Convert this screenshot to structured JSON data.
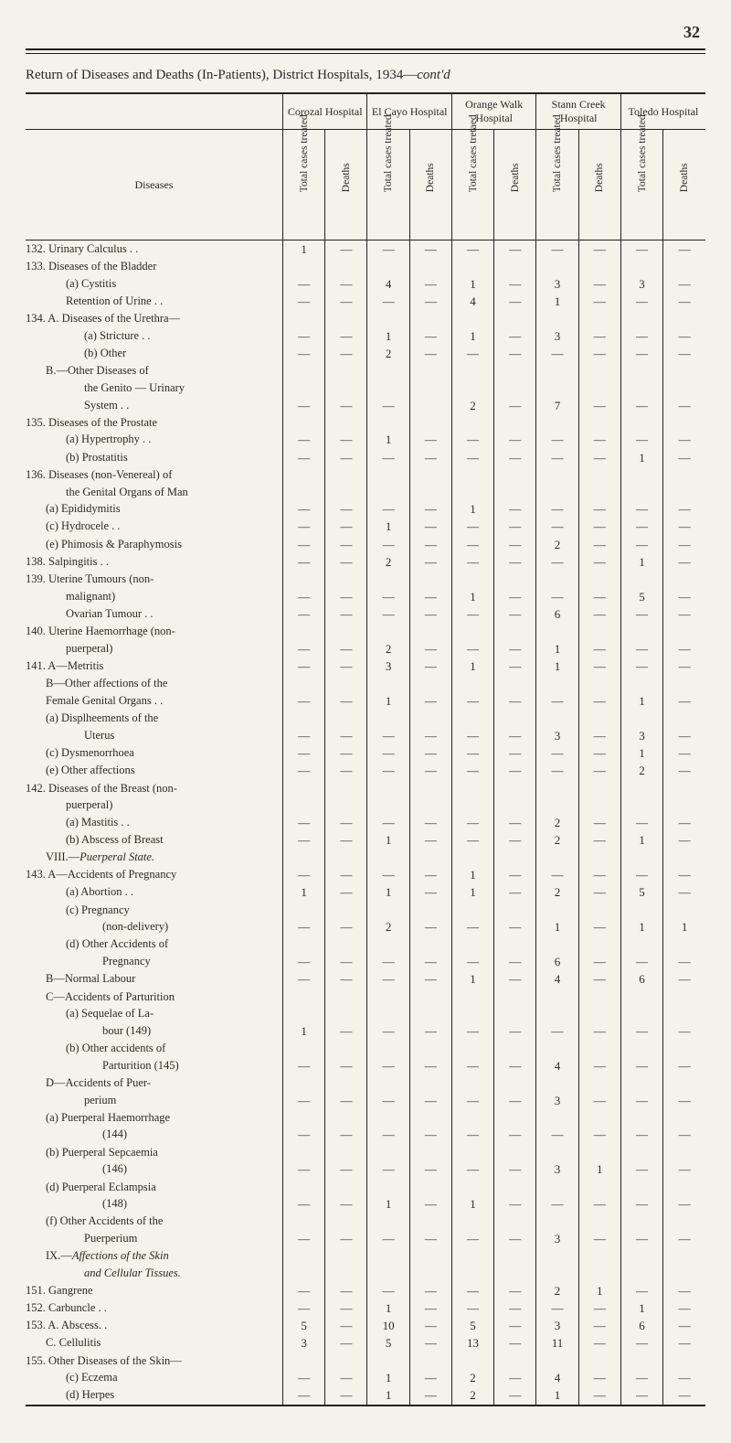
{
  "page_number": "32",
  "title": "Return of Diseases and Deaths (In-Patients), District Hospitals, 1934—",
  "title_tail_italic": "cont'd",
  "diseases_header": "Diseases",
  "hospitals": [
    "Corozal Hospital",
    "El Cayo Hospital",
    "Orange Walk Hospital",
    "Stann Creek Hospital",
    "Toledo Hospital"
  ],
  "subcols": [
    "Total cases treated",
    "Deaths",
    "Total cases treated",
    "Deaths",
    "Total cases tretaed",
    "Deaths",
    "Total cases treated",
    "Deaths",
    "Total cases treated",
    "Deaths"
  ],
  "dash": "—",
  "rows": [
    {
      "indent": 0,
      "label": "132. Urinary Calculus  . .",
      "v": [
        "1",
        "—",
        "—",
        "—",
        "—",
        "—",
        "—",
        "—",
        "—",
        "—"
      ]
    },
    {
      "indent": 0,
      "label": "133. Diseases of the Bladder",
      "v": [
        "",
        "",
        "",
        "",
        "",
        "",
        "",
        "",
        "",
        ""
      ]
    },
    {
      "indent": 2,
      "label": "(a)  Cystitis",
      "v": [
        "—",
        "—",
        "4",
        "—",
        "1",
        "—",
        "3",
        "—",
        "3",
        "—"
      ]
    },
    {
      "indent": 2,
      "label": "Retention of Urine  . .",
      "v": [
        "—",
        "—",
        "—",
        "—",
        "4",
        "—",
        "1",
        "—",
        "—",
        "—"
      ]
    },
    {
      "indent": 0,
      "label": "134. A.  Diseases of the Urethra—",
      "v": [
        "",
        "",
        "",
        "",
        "",
        "",
        "",
        "",
        "",
        ""
      ]
    },
    {
      "indent": 3,
      "label": "(a)  Stricture  . .",
      "v": [
        "—",
        "—",
        "1",
        "—",
        "1",
        "—",
        "3",
        "—",
        "—",
        "—"
      ]
    },
    {
      "indent": 3,
      "label": "(b)  Other",
      "v": [
        "—",
        "—",
        "2",
        "—",
        "—",
        "—",
        "—",
        "—",
        "—",
        "—"
      ]
    },
    {
      "indent": 1,
      "label": "B.—Other Diseases of",
      "v": [
        "",
        "",
        "",
        "",
        "",
        "",
        "",
        "",
        "",
        ""
      ]
    },
    {
      "indent": 3,
      "label": "the Genito — Urinary",
      "v": [
        "",
        "",
        "",
        "",
        "",
        "",
        "",
        "",
        "",
        ""
      ]
    },
    {
      "indent": 3,
      "label": "System  . .",
      "v": [
        "—",
        "—",
        "—",
        "",
        "2",
        "—",
        "7",
        "—",
        "—",
        "—"
      ]
    },
    {
      "indent": 0,
      "label": "135. Diseases of the Prostate",
      "v": [
        "",
        "",
        "",
        "",
        "",
        "",
        "",
        "",
        "",
        ""
      ]
    },
    {
      "indent": 2,
      "label": "(a)  Hypertrophy  . .",
      "v": [
        "—",
        "—",
        "1",
        "—",
        "—",
        "—",
        "—",
        "—",
        "—",
        "—"
      ]
    },
    {
      "indent": 2,
      "label": "(b)  Prostatitis",
      "v": [
        "—",
        "—",
        "—",
        "—",
        "—",
        "—",
        "—",
        "—",
        "1",
        "—"
      ]
    },
    {
      "indent": 0,
      "label": "136. Diseases (non-Venereal) of",
      "v": [
        "",
        "",
        "",
        "",
        "",
        "",
        "",
        "",
        "",
        ""
      ]
    },
    {
      "indent": 2,
      "label": "the Genital Organs of Man",
      "v": [
        "",
        "",
        "",
        "",
        "",
        "",
        "",
        "",
        "",
        ""
      ]
    },
    {
      "indent": 1,
      "label": "(a) Epididymitis",
      "v": [
        "—",
        "—",
        "—",
        "—",
        "1",
        "—",
        "—",
        "—",
        "—",
        "—"
      ]
    },
    {
      "indent": 1,
      "label": "(c) Hydrocele  . .",
      "v": [
        "—",
        "—",
        "1",
        "—",
        "—",
        "—",
        "—",
        "—",
        "—",
        "—"
      ]
    },
    {
      "indent": 1,
      "label": "(e) Phimosis & Paraphymosis",
      "v": [
        "—",
        "—",
        "—",
        "—",
        "—",
        "—",
        "2",
        "—",
        "—",
        "—"
      ]
    },
    {
      "indent": 0,
      "label": "138. Salpingitis  . .",
      "v": [
        "—",
        "—",
        "2",
        "—",
        "—",
        "—",
        "—",
        "—",
        "1",
        "—"
      ]
    },
    {
      "indent": 0,
      "label": "139. Uterine Tumours (non-",
      "v": [
        "",
        "",
        "",
        "",
        "",
        "",
        "",
        "",
        "",
        ""
      ]
    },
    {
      "indent": 2,
      "label": "malignant)",
      "v": [
        "—",
        "—",
        "—",
        "—",
        "1",
        "—",
        "—",
        "—",
        "5",
        "—"
      ]
    },
    {
      "indent": 2,
      "label": "Ovarian Tumour  . .",
      "v": [
        "—",
        "—",
        "—",
        "—",
        "—",
        "—",
        "6",
        "—",
        "—",
        "—"
      ]
    },
    {
      "indent": 0,
      "label": "140. Uterine Haemorrhage (non-",
      "v": [
        "",
        "",
        "",
        "",
        "",
        "",
        "",
        "",
        "",
        ""
      ]
    },
    {
      "indent": 2,
      "label": "puerperal)",
      "v": [
        "—",
        "—",
        "2",
        "—",
        "—",
        "—",
        "1",
        "—",
        "—",
        "—"
      ]
    },
    {
      "indent": 0,
      "label": "141. A—Metritis",
      "v": [
        "—",
        "—",
        "3",
        "—",
        "1",
        "—",
        "1",
        "—",
        "—",
        "—"
      ]
    },
    {
      "indent": 1,
      "label": "B—Other affections of the",
      "v": [
        "",
        "",
        "",
        "",
        "",
        "",
        "",
        "",
        "",
        ""
      ]
    },
    {
      "indent": 1,
      "label": "Female Genital Organs . .",
      "v": [
        "—",
        "—",
        "1",
        "—",
        "—",
        "—",
        "—",
        "—",
        "1",
        "—"
      ]
    },
    {
      "indent": 1,
      "label": "(a)  Displheements of the",
      "v": [
        "",
        "",
        "",
        "",
        "",
        "",
        "",
        "",
        "",
        ""
      ]
    },
    {
      "indent": 3,
      "label": "Uterus",
      "v": [
        "—",
        "—",
        "—",
        "—",
        "—",
        "—",
        "3",
        "—",
        "3",
        "—"
      ]
    },
    {
      "indent": 1,
      "label": "(c)  Dysmenorrhoea",
      "v": [
        "—",
        "—",
        "—",
        "—",
        "—",
        "—",
        "—",
        "—",
        "1",
        "—"
      ]
    },
    {
      "indent": 1,
      "label": "(e)  Other affections",
      "v": [
        "—",
        "—",
        "—",
        "—",
        "—",
        "—",
        "—",
        "—",
        "2",
        "—"
      ]
    },
    {
      "indent": 0,
      "label": "142. Diseases of the Breast (non-",
      "v": [
        "",
        "",
        "",
        "",
        "",
        "",
        "",
        "",
        "",
        ""
      ]
    },
    {
      "indent": 2,
      "label": "puerperal)",
      "v": [
        "",
        "",
        "",
        "",
        "",
        "",
        "",
        "",
        "",
        ""
      ]
    },
    {
      "indent": 2,
      "label": "(a)  Mastitis  . .",
      "v": [
        "—",
        "—",
        "—",
        "—",
        "—",
        "—",
        "2",
        "—",
        "—",
        "—"
      ]
    },
    {
      "indent": 2,
      "label": "(b)  Abscess of Breast",
      "v": [
        "—",
        "—",
        "1",
        "—",
        "—",
        "—",
        "2",
        "—",
        "1",
        "—"
      ]
    },
    {
      "indent": 1,
      "label": "VIII.—",
      "italic_tail": "Puerperal State.",
      "v": [
        "",
        "",
        "",
        "",
        "",
        "",
        "",
        "",
        "",
        ""
      ]
    },
    {
      "indent": 0,
      "label": "143. A—Accidents of Pregnancy",
      "v": [
        "—",
        "—",
        "—",
        "—",
        "1",
        "—",
        "—",
        "—",
        "—",
        "—"
      ]
    },
    {
      "indent": 2,
      "label": "(a)  Abortion  . .",
      "v": [
        "1",
        "—",
        "1",
        "—",
        "1",
        "—",
        "2",
        "—",
        "5",
        "—"
      ]
    },
    {
      "indent": 2,
      "label": "(c)  Pregnancy",
      "v": [
        "",
        "",
        "",
        "",
        "",
        "",
        "",
        "",
        "",
        ""
      ]
    },
    {
      "indent": 4,
      "label": "(non-delivery)",
      "v": [
        "—",
        "—",
        "2",
        "—",
        "—",
        "—",
        "1",
        "—",
        "1",
        "1"
      ]
    },
    {
      "indent": 2,
      "label": "(d)  Other Accidents of",
      "v": [
        "",
        "",
        "",
        "",
        "",
        "",
        "",
        "",
        "",
        ""
      ]
    },
    {
      "indent": 4,
      "label": "Pregnancy",
      "v": [
        "—",
        "—",
        "—",
        "—",
        "—",
        "—",
        "6",
        "—",
        "—",
        "—"
      ]
    },
    {
      "indent": 1,
      "label": "B—Normal Labour",
      "v": [
        "—",
        "—",
        "—",
        "—",
        "1",
        "—",
        "4",
        "—",
        "6",
        "—"
      ]
    },
    {
      "indent": 1,
      "label": "C—Accidents of Parturition",
      "v": [
        "",
        "",
        "",
        "",
        "",
        "",
        "",
        "",
        "",
        ""
      ]
    },
    {
      "indent": 2,
      "label": "(a)  Sequelae of La-",
      "v": [
        "",
        "",
        "",
        "",
        "",
        "",
        "",
        "",
        "",
        ""
      ]
    },
    {
      "indent": 4,
      "label": "bour  (149)",
      "v": [
        "1",
        "—",
        "—",
        "—",
        "—",
        "—",
        "—",
        "—",
        "—",
        "—"
      ]
    },
    {
      "indent": 2,
      "label": "(b)  Other accidents of",
      "v": [
        "",
        "",
        "",
        "",
        "",
        "",
        "",
        "",
        "",
        ""
      ]
    },
    {
      "indent": 4,
      "label": "Parturition (145)",
      "v": [
        "—",
        "—",
        "—",
        "—",
        "—",
        "—",
        "4",
        "—",
        "—",
        "—"
      ]
    },
    {
      "indent": 1,
      "label": "D—Accidents of Puer-",
      "v": [
        "",
        "",
        "",
        "",
        "",
        "",
        "",
        "",
        "",
        ""
      ]
    },
    {
      "indent": 3,
      "label": "perium",
      "v": [
        "—",
        "—",
        "—",
        "—",
        "—",
        "—",
        "3",
        "—",
        "—",
        "—"
      ]
    },
    {
      "indent": 1,
      "label": "(a)  Puerperal Haemorrhage",
      "v": [
        "",
        "",
        "",
        "",
        "",
        "",
        "",
        "",
        "",
        ""
      ]
    },
    {
      "indent": 4,
      "label": "(144)",
      "v": [
        "—",
        "—",
        "—",
        "—",
        "—",
        "—",
        "—",
        "—",
        "—",
        "—"
      ]
    },
    {
      "indent": 1,
      "label": "(b)  Puerperal Sepcaemia",
      "v": [
        "",
        "",
        "",
        "",
        "",
        "",
        "",
        "",
        "",
        ""
      ]
    },
    {
      "indent": 4,
      "label": "(146)",
      "v": [
        "—",
        "—",
        "—",
        "—",
        "—",
        "—",
        "3",
        "1",
        "—",
        "—"
      ]
    },
    {
      "indent": 1,
      "label": "(d)  Puerperal Eclampsia",
      "v": [
        "",
        "",
        "",
        "",
        "",
        "",
        "",
        "",
        "",
        ""
      ]
    },
    {
      "indent": 4,
      "label": "(148)",
      "v": [
        "—",
        "—",
        "1",
        "—",
        "1",
        "—",
        "—",
        "—",
        "—",
        "—"
      ]
    },
    {
      "indent": 1,
      "label": "(f)  Other Accidents of the",
      "v": [
        "",
        "",
        "",
        "",
        "",
        "",
        "",
        "",
        "",
        ""
      ]
    },
    {
      "indent": 3,
      "label": "Puerperium",
      "v": [
        "—",
        "—",
        "—",
        "—",
        "—",
        "—",
        "3",
        "—",
        "—",
        "—"
      ]
    },
    {
      "indent": 1,
      "label": "IX.—",
      "italic_tail": "Affections of the Skin",
      "v": [
        "",
        "",
        "",
        "",
        "",
        "",
        "",
        "",
        "",
        ""
      ]
    },
    {
      "indent": 3,
      "italic_full": "and Cellular Tissues.",
      "v": [
        "",
        "",
        "",
        "",
        "",
        "",
        "",
        "",
        "",
        ""
      ]
    },
    {
      "indent": 0,
      "label": "151. Gangrene",
      "v": [
        "—",
        "—",
        "—",
        "—",
        "—",
        "—",
        "2",
        "1",
        "—",
        "—"
      ]
    },
    {
      "indent": 0,
      "label": "152. Carbuncle  . .",
      "v": [
        "—",
        "—",
        "1",
        "—",
        "—",
        "—",
        "—",
        "—",
        "1",
        "—"
      ]
    },
    {
      "indent": 0,
      "label": "153. A.  Abscess. .",
      "v": [
        "5",
        "—",
        "10",
        "—",
        "5",
        "—",
        "3",
        "—",
        "6",
        "—"
      ]
    },
    {
      "indent": 1,
      "label": "C.  Cellulitis",
      "v": [
        "3",
        "—",
        "5",
        "—",
        "13",
        "—",
        "11",
        "—",
        "—",
        "—"
      ]
    },
    {
      "indent": 0,
      "label": "155. Other Diseases of the Skin—",
      "v": [
        "",
        "",
        "",
        "",
        "",
        "",
        "",
        "",
        "",
        ""
      ]
    },
    {
      "indent": 2,
      "label": "(c)  Eczema",
      "v": [
        "—",
        "—",
        "1",
        "—",
        "2",
        "—",
        "4",
        "—",
        "—",
        "—"
      ]
    },
    {
      "indent": 2,
      "label": "(d)  Herpes",
      "v": [
        "—",
        "—",
        "1",
        "—",
        "2",
        "—",
        "1",
        "—",
        "—",
        "—"
      ]
    }
  ],
  "style": {
    "page_bg": "#f5f2ea",
    "text_color": "#2a2a28",
    "rule_color": "#1a1a18",
    "font_family": "Times New Roman",
    "body_font_size_pt": 10,
    "title_font_size_pt": 11.5,
    "pagenum_font_size_pt": 14
  }
}
